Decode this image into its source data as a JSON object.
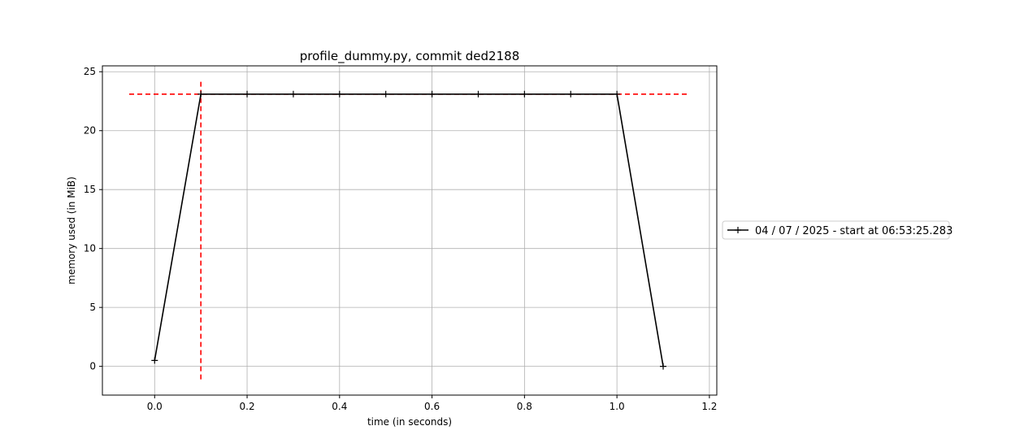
{
  "chart_data": {
    "type": "line",
    "title": "profile_dummy.py, commit ded2188",
    "xlabel": "time (in seconds)",
    "ylabel": "memory used (in MiB)",
    "xlim": [
      -0.113,
      1.216
    ],
    "ylim": [
      -2.44,
      25.5
    ],
    "xticks": [
      0.0,
      0.2,
      0.4,
      0.6,
      0.8,
      1.0,
      1.2
    ],
    "xtick_labels": [
      "0.0",
      "0.2",
      "0.4",
      "0.6",
      "0.8",
      "1.0",
      "1.2"
    ],
    "yticks": [
      0,
      5,
      10,
      15,
      20,
      25
    ],
    "ytick_labels": [
      "0",
      "5",
      "10",
      "15",
      "20",
      "25"
    ],
    "grid": true,
    "legend_position": "right-outside",
    "series": [
      {
        "name": "04 / 07 / 2025 - start at 06:53:25.283",
        "color": "#000000",
        "marker": "+",
        "x": [
          0.0,
          0.1,
          0.2,
          0.3,
          0.4,
          0.5,
          0.6,
          0.7,
          0.8,
          0.9,
          1.0,
          1.1
        ],
        "y": [
          0.5,
          23.1,
          23.1,
          23.1,
          23.1,
          23.1,
          23.1,
          23.1,
          23.1,
          23.1,
          23.1,
          0.0
        ]
      }
    ],
    "reference_lines": [
      {
        "orientation": "horizontal",
        "value": 23.1,
        "from": -0.055,
        "to": 1.155,
        "color": "#ff0000",
        "style": "dashed"
      },
      {
        "orientation": "vertical",
        "value": 0.1,
        "from": -1.1,
        "to": 24.3,
        "color": "#ff0000",
        "style": "dashed"
      }
    ]
  }
}
